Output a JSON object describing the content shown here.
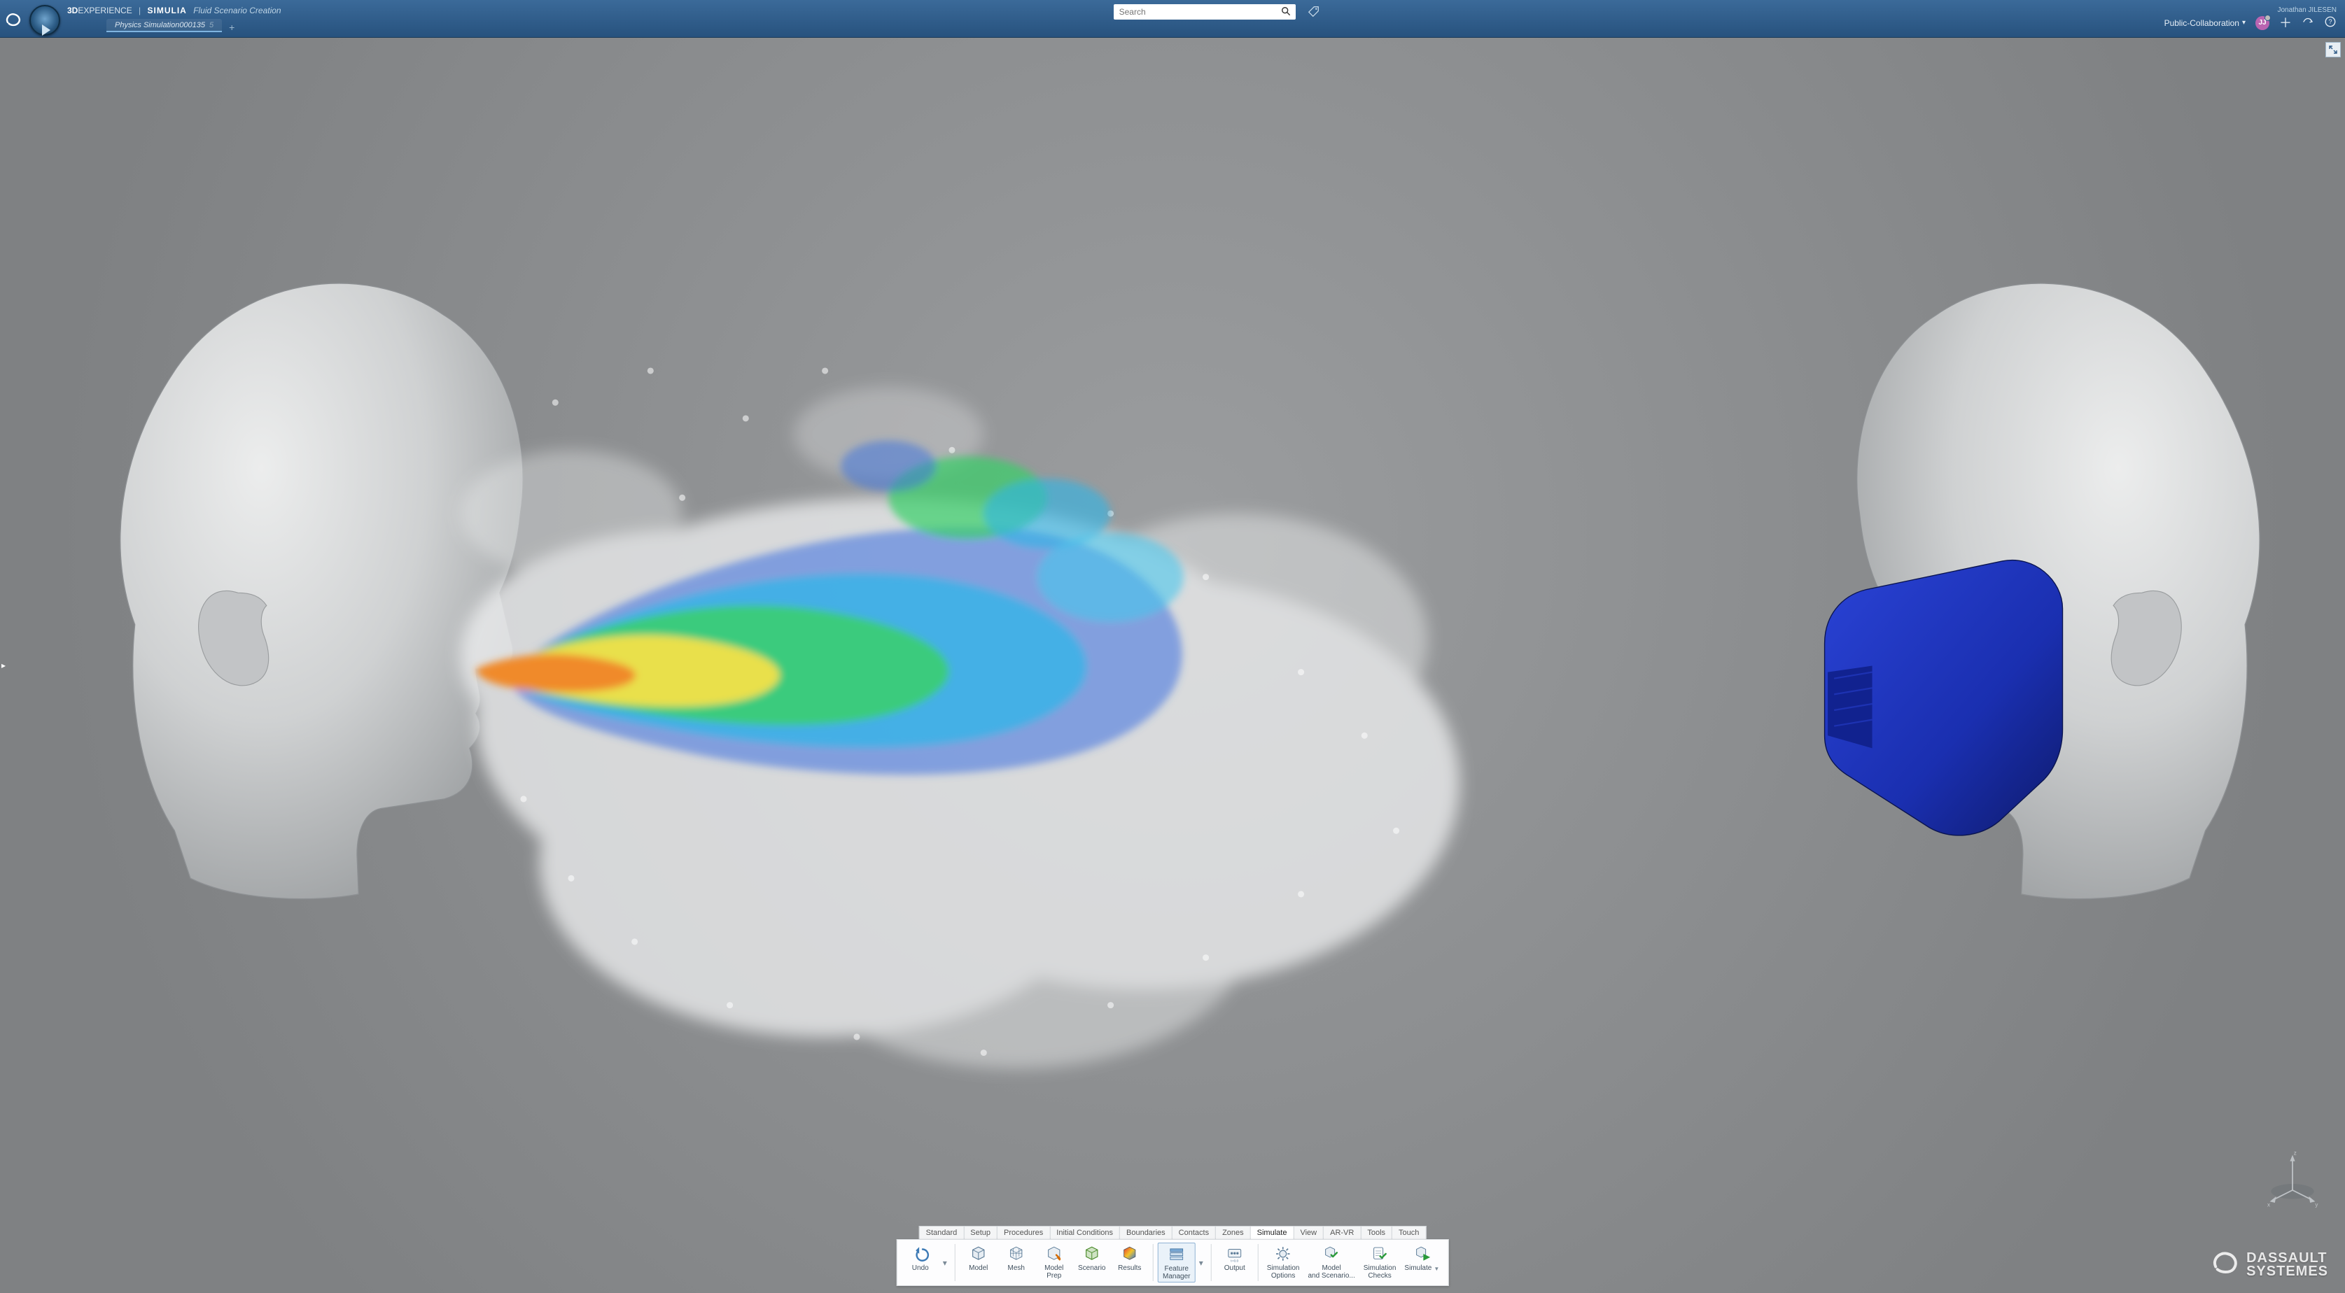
{
  "header": {
    "brand_bold": "3D",
    "brand_light": "EXPERIENCE",
    "brand_segment": "SIMULIA",
    "brand_context": "Fluid Scenario Creation",
    "search_placeholder": "Search",
    "user_name": "Jonathan JILESEN",
    "collab_label": "Public-Collaboration",
    "avatar_initials": "JJ"
  },
  "tabs": {
    "doc_name": "Physics Simulation000135",
    "doc_suffix": "5",
    "add_tab_glyph": "+"
  },
  "canvas": {
    "background_color": "#8b8d8f",
    "head_color": "#d7d8d9",
    "head_shadow": "#a9abad",
    "mask_color": "#1a2fb0",
    "mask_shadow": "#0e1a6b",
    "plume_colors": {
      "core": "#f2e24a",
      "hot": "#f08a2a",
      "warm": "#7fd34a",
      "mid": "#2fb6e8",
      "cool": "#3a6fe0",
      "mist": "#e8e9ea"
    }
  },
  "triad": {
    "x": "x",
    "y": "y",
    "z": "z"
  },
  "watermark": {
    "line1": "DASSAULT",
    "line2": "SYSTEMES"
  },
  "action_bar": {
    "tabs": [
      "Standard",
      "Setup",
      "Procedures",
      "Initial Conditions",
      "Boundaries",
      "Contacts",
      "Zones",
      "Simulate",
      "View",
      "AR-VR",
      "Tools",
      "Touch"
    ],
    "active_tab": "Simulate",
    "buttons": {
      "undo": "Undo",
      "model": "Model",
      "mesh": "Mesh",
      "model_prep": "Model\nPrep",
      "scenario": "Scenario",
      "results": "Results",
      "feature_manager": "Feature\nManager",
      "output": "Output",
      "sim_options": "Simulation\nOptions",
      "model_scenario": "Model\nand Scenario...",
      "sim_checks": "Simulation\nChecks",
      "simulate": "Simulate"
    }
  }
}
